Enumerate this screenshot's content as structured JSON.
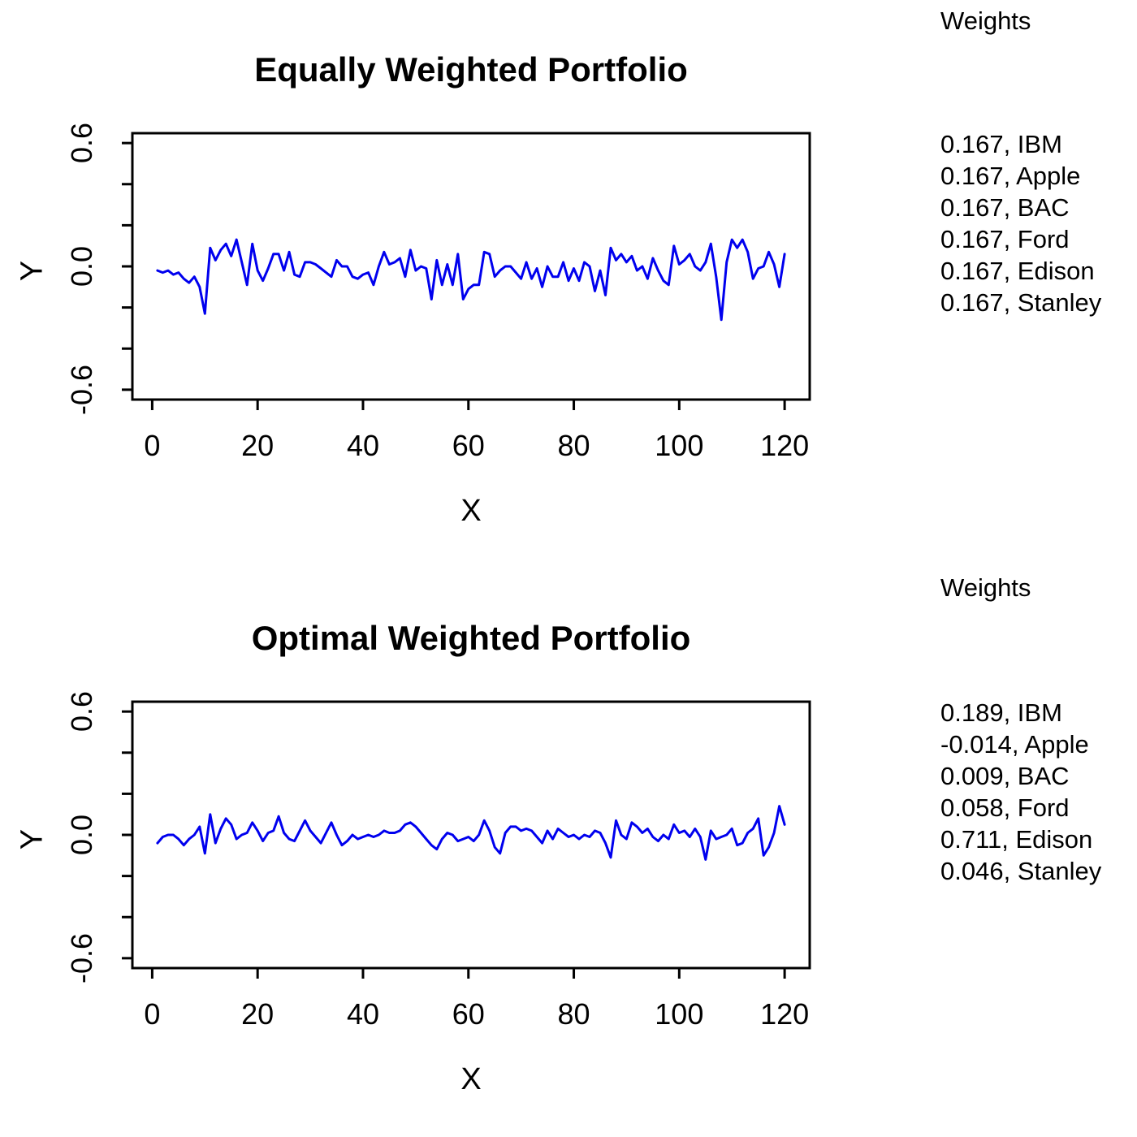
{
  "figure": {
    "background": "#ffffff",
    "axis_color": "#000000",
    "text_color": "#000000",
    "line_color": "#0000ee"
  },
  "chart_data": [
    {
      "type": "line",
      "title": "Equally Weighted Portfolio",
      "xlabel": "X",
      "ylabel": "Y",
      "xlim": [
        0,
        120
      ],
      "ylim": [
        -0.6,
        0.6
      ],
      "x_ticks": [
        0,
        20,
        40,
        60,
        80,
        100,
        120
      ],
      "y_ticks": [
        -0.6,
        -0.4,
        -0.2,
        0,
        0.2,
        0.4,
        0.6
      ],
      "y_tick_labels": [
        {
          "value": 0.6,
          "label": "0.6"
        },
        {
          "value": 0,
          "label": "0.0"
        },
        {
          "value": -0.6,
          "label": "-0.6"
        }
      ],
      "x_start": 1,
      "x_step": 1,
      "line_color": "#0000ee",
      "values": [
        -0.02,
        -0.03,
        -0.02,
        -0.04,
        -0.03,
        -0.06,
        -0.08,
        -0.05,
        -0.1,
        -0.23,
        0.09,
        0.03,
        0.08,
        0.11,
        0.05,
        0.13,
        0.02,
        -0.09,
        0.11,
        -0.02,
        -0.07,
        -0.01,
        0.06,
        0.06,
        -0.02,
        0.07,
        -0.04,
        -0.05,
        0.02,
        0.02,
        0.01,
        -0.01,
        -0.03,
        -0.05,
        0.03,
        0.0,
        0.0,
        -0.05,
        -0.06,
        -0.04,
        -0.03,
        -0.09,
        0.0,
        0.07,
        0.01,
        0.02,
        0.04,
        -0.05,
        0.08,
        -0.02,
        0.0,
        -0.01,
        -0.16,
        0.03,
        -0.09,
        0.01,
        -0.09,
        0.06,
        -0.16,
        -0.11,
        -0.09,
        -0.09,
        0.07,
        0.06,
        -0.05,
        -0.02,
        0.0,
        0.0,
        -0.03,
        -0.06,
        0.02,
        -0.06,
        -0.01,
        -0.1,
        0.0,
        -0.05,
        -0.05,
        0.02,
        -0.07,
        -0.01,
        -0.07,
        0.02,
        0.0,
        -0.12,
        -0.02,
        -0.14,
        0.09,
        0.03,
        0.06,
        0.02,
        0.05,
        -0.02,
        0.0,
        -0.06,
        0.04,
        -0.02,
        -0.07,
        -0.09,
        0.1,
        0.01,
        0.03,
        0.06,
        0.0,
        -0.02,
        0.02,
        0.11,
        -0.05,
        -0.26,
        0.02,
        0.13,
        0.09,
        0.13,
        0.07,
        -0.06,
        -0.01,
        0.0,
        0.07,
        0.01,
        -0.1,
        0.06
      ],
      "legend": {
        "title": "Weights",
        "entries": [
          "0.167, IBM",
          "0.167, Apple",
          "0.167, BAC",
          "0.167, Ford",
          "0.167, Edison",
          "0.167, Stanley"
        ]
      }
    },
    {
      "type": "line",
      "title": "Optimal Weighted Portfolio",
      "xlabel": "X",
      "ylabel": "Y",
      "xlim": [
        0,
        120
      ],
      "ylim": [
        -0.6,
        0.6
      ],
      "x_ticks": [
        0,
        20,
        40,
        60,
        80,
        100,
        120
      ],
      "y_ticks": [
        -0.6,
        -0.4,
        -0.2,
        0,
        0.2,
        0.4,
        0.6
      ],
      "y_tick_labels": [
        {
          "value": 0.6,
          "label": "0.6"
        },
        {
          "value": 0,
          "label": "0.0"
        },
        {
          "value": -0.6,
          "label": "-0.6"
        }
      ],
      "x_start": 1,
      "x_step": 1,
      "line_color": "#0000ee",
      "values": [
        -0.04,
        -0.01,
        0.0,
        0.0,
        -0.02,
        -0.05,
        -0.02,
        0.0,
        0.04,
        -0.09,
        0.1,
        -0.04,
        0.03,
        0.08,
        0.05,
        -0.02,
        0.0,
        0.01,
        0.06,
        0.02,
        -0.03,
        0.01,
        0.02,
        0.09,
        0.01,
        -0.02,
        -0.03,
        0.02,
        0.07,
        0.02,
        -0.01,
        -0.04,
        0.01,
        0.06,
        0.0,
        -0.05,
        -0.03,
        0.0,
        -0.02,
        -0.01,
        0.0,
        -0.01,
        0.0,
        0.02,
        0.01,
        0.01,
        0.02,
        0.05,
        0.06,
        0.04,
        0.01,
        -0.02,
        -0.05,
        -0.07,
        -0.02,
        0.01,
        0.0,
        -0.03,
        -0.02,
        -0.01,
        -0.03,
        0.0,
        0.07,
        0.02,
        -0.06,
        -0.09,
        0.01,
        0.04,
        0.04,
        0.02,
        0.03,
        0.02,
        -0.01,
        -0.04,
        0.02,
        -0.02,
        0.03,
        0.01,
        -0.01,
        0.0,
        -0.02,
        0.0,
        -0.01,
        0.02,
        0.01,
        -0.04,
        -0.11,
        0.07,
        0.0,
        -0.02,
        0.06,
        0.04,
        0.01,
        0.03,
        -0.01,
        -0.03,
        0.0,
        -0.02,
        0.05,
        0.01,
        0.02,
        -0.01,
        0.03,
        -0.01,
        -0.12,
        0.02,
        -0.02,
        -0.01,
        0.0,
        0.03,
        -0.05,
        -0.04,
        0.01,
        0.03,
        0.08,
        -0.1,
        -0.06,
        0.01,
        0.14,
        0.05
      ],
      "legend": {
        "title": "Weights",
        "entries": [
          "0.189, IBM",
          "-0.014, Apple",
          "0.009, BAC",
          "0.058, Ford",
          "0.711, Edison",
          "0.046, Stanley"
        ]
      }
    }
  ]
}
